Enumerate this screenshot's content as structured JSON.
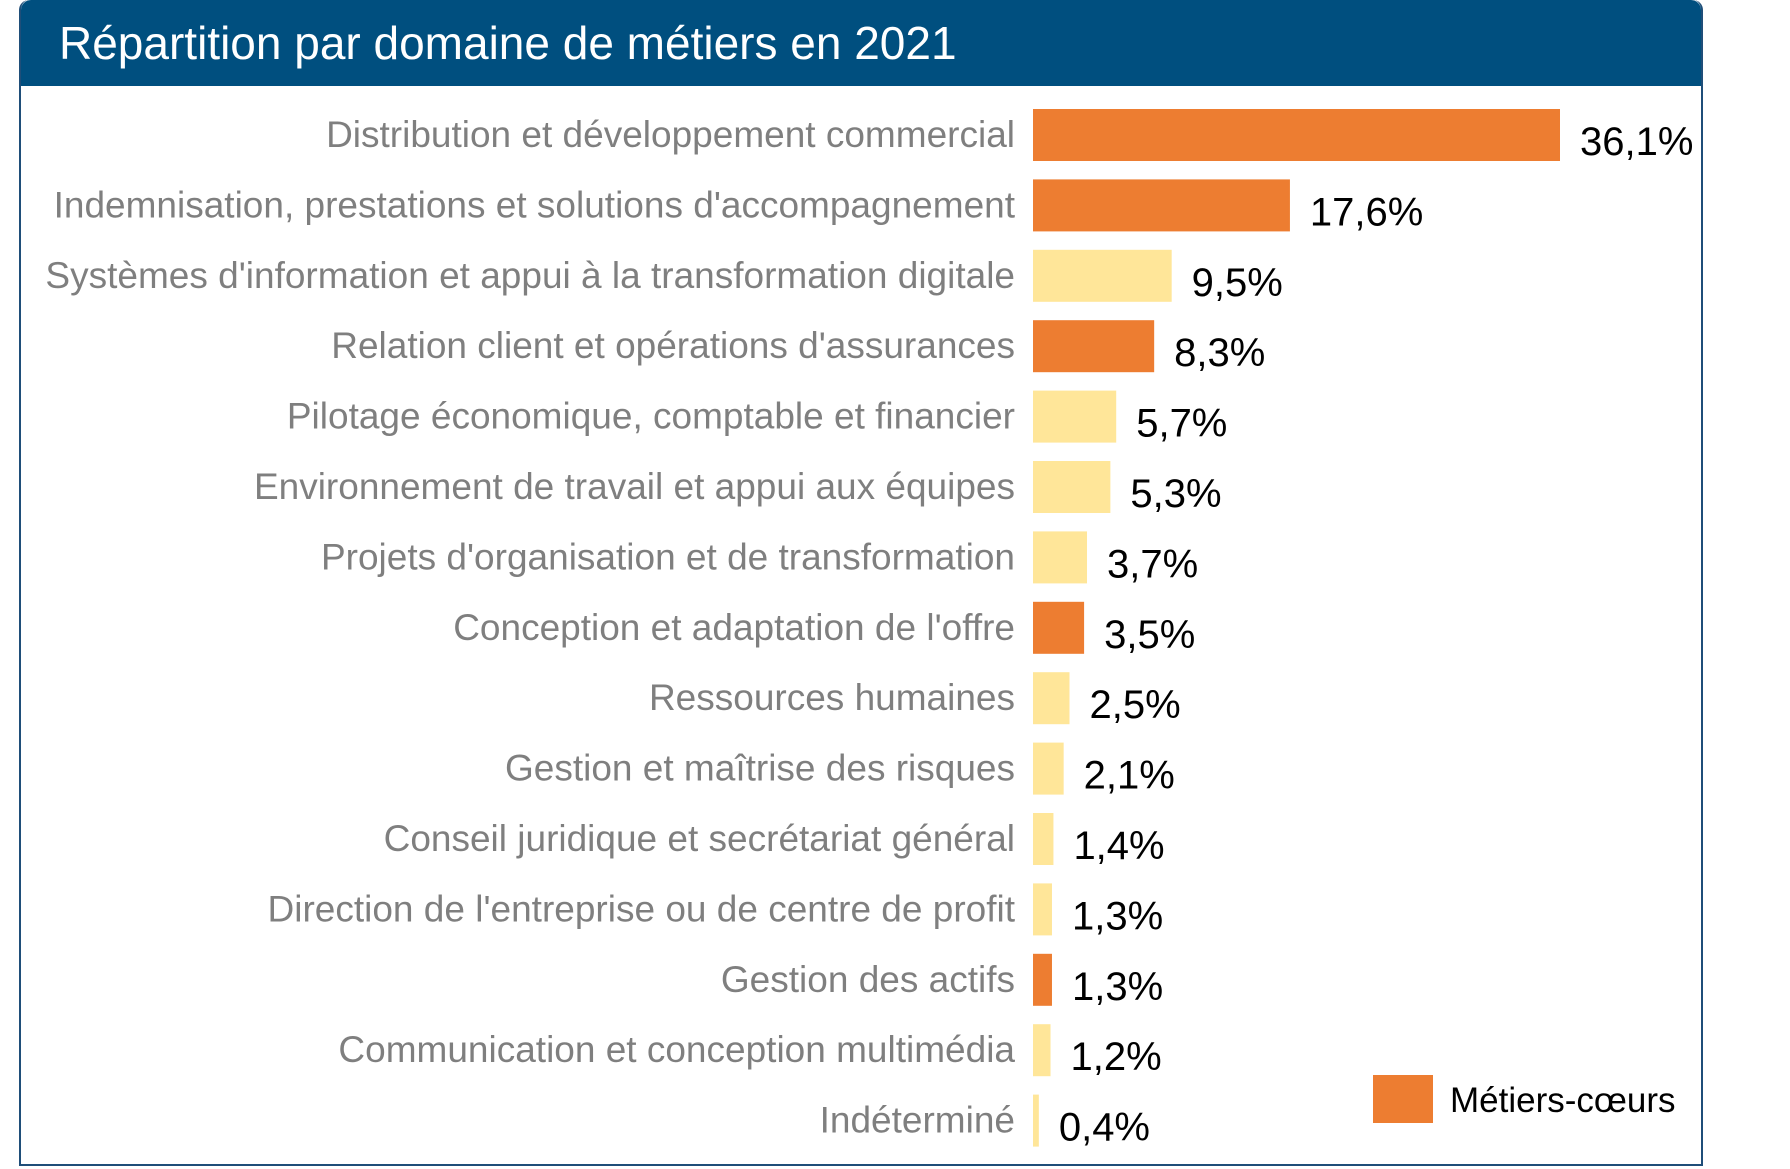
{
  "title": "Répartition par domaine de métiers en 2021",
  "colors": {
    "header": "#004f7f",
    "core": "#ed7d31",
    "other": "#ffe699",
    "border": "#1f4e79"
  },
  "legend": {
    "label": "Métiers-cœurs",
    "color": "#ed7d31",
    "position": "bottom-right"
  },
  "chart_data": {
    "type": "bar",
    "orientation": "horizontal",
    "title": "Répartition par domaine de métiers en 2021",
    "value_format": "percent, comma decimal",
    "xlim": [
      0,
      36.1
    ],
    "grid": false,
    "legend_position": "bottom-right",
    "categories": [
      "Distribution et développement commercial",
      "Indemnisation, prestations et solutions d'accompagnement",
      "Systèmes d'information et appui à la transformation digitale",
      "Relation client et opérations d'assurances",
      "Pilotage économique, comptable et financier",
      "Environnement de travail et appui aux équipes",
      "Projets d'organisation et de transformation",
      "Conception et adaptation de l'offre",
      "Ressources humaines",
      "Gestion et maîtrise des risques",
      "Conseil juridique et secrétariat général",
      "Direction de l'entreprise ou de centre de profit",
      "Gestion des actifs",
      "Communication et conception multimédia",
      "Indéterminé"
    ],
    "values": [
      36.1,
      17.6,
      9.5,
      8.3,
      5.7,
      5.3,
      3.7,
      3.5,
      2.5,
      2.1,
      1.4,
      1.3,
      1.3,
      1.2,
      0.4
    ],
    "value_labels": [
      "36,1%",
      "17,6%",
      "9,5%",
      "8,3%",
      "5,7%",
      "5,3%",
      "3,7%",
      "3,5%",
      "2,5%",
      "2,1%",
      "1,4%",
      "1,3%",
      "1,3%",
      "1,2%",
      "0,4%"
    ],
    "core_flags": [
      true,
      true,
      false,
      true,
      false,
      false,
      false,
      true,
      false,
      false,
      false,
      false,
      true,
      false,
      false
    ]
  }
}
